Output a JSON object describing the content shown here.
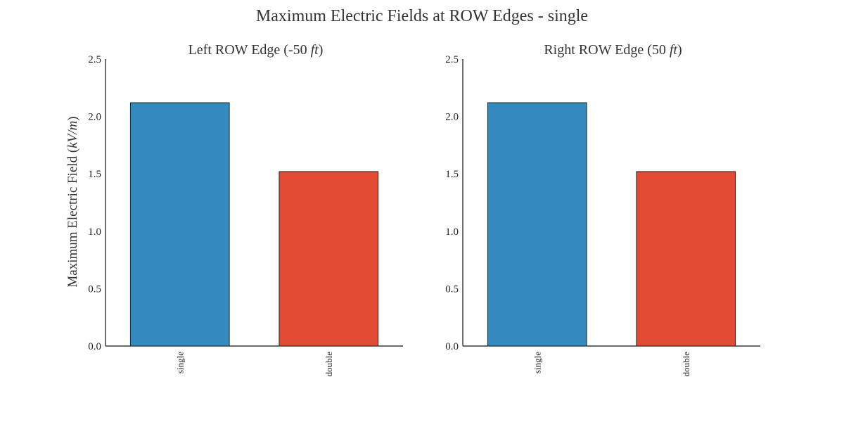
{
  "chart_title": "Maximum Electric Fields at ROW Edges - single",
  "chart_data": [
    {
      "type": "bar",
      "title": "Left ROW Edge (-50 ft)",
      "title_unit": "ft",
      "ylabel": "Maximum Electric Field (kV/m)",
      "xlabel": "",
      "categories": [
        "single",
        "double"
      ],
      "values": [
        2.12,
        1.52
      ],
      "colors": [
        "#348ABD",
        "#E24A33"
      ],
      "ylim": [
        0,
        2.5
      ],
      "yticks": [
        "0.0",
        "0.5",
        "1.0",
        "1.5",
        "2.0",
        "2.5"
      ],
      "grid": false,
      "legend": "none"
    },
    {
      "type": "bar",
      "title": "Right ROW Edge (50 ft)",
      "title_unit": "ft",
      "ylabel": "",
      "xlabel": "",
      "categories": [
        "single",
        "double"
      ],
      "values": [
        2.12,
        1.52
      ],
      "colors": [
        "#348ABD",
        "#E24A33"
      ],
      "ylim": [
        0,
        2.5
      ],
      "yticks": [
        "0.0",
        "0.5",
        "1.0",
        "1.5",
        "2.0",
        "2.5"
      ],
      "grid": false,
      "legend": "none"
    }
  ]
}
